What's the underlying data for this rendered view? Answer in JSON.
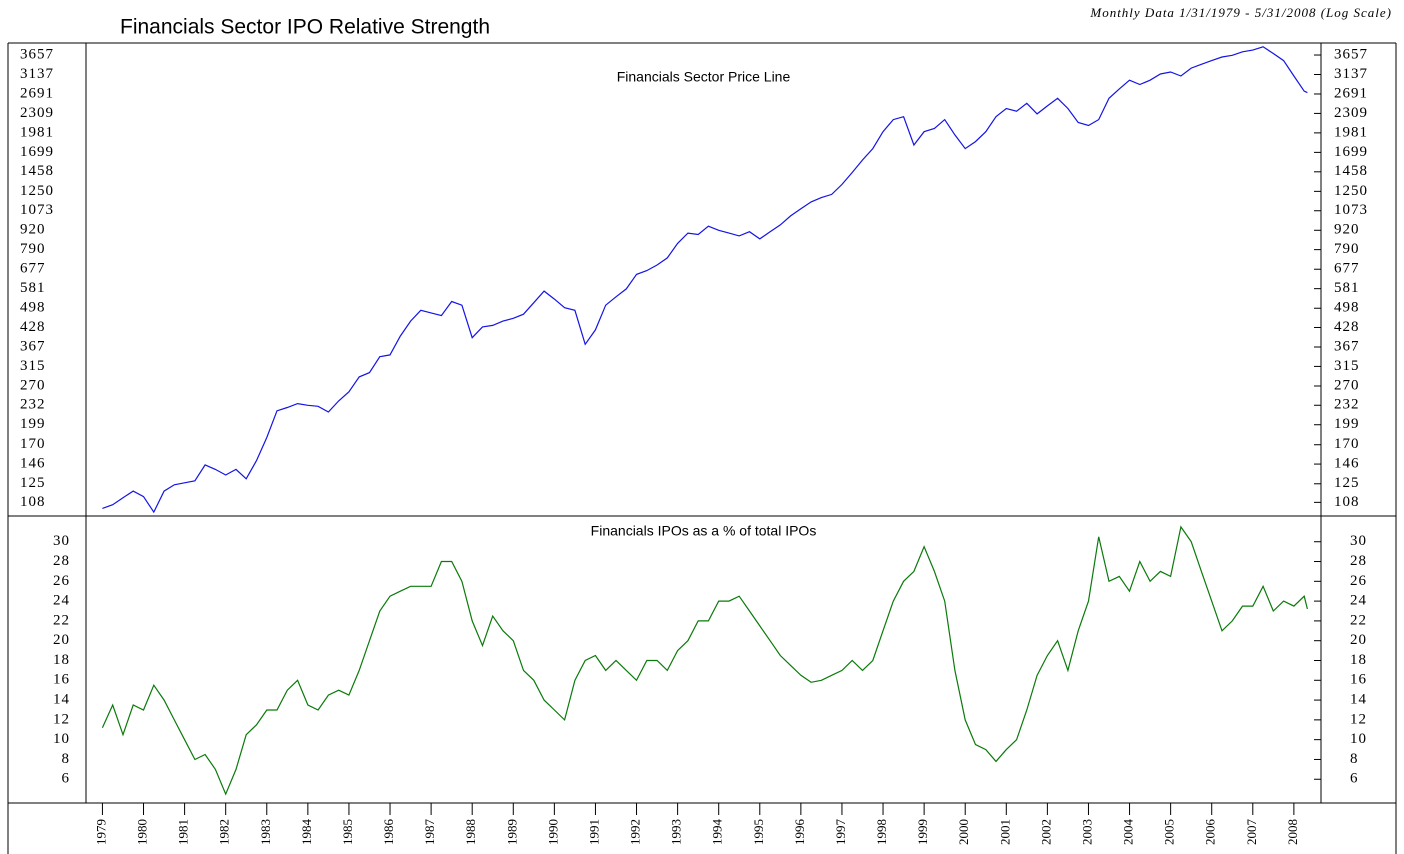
{
  "chart_data": [
    {
      "type": "line",
      "title": "Financials Sector IPO Relative Strength",
      "subtitle": "Monthly Data 1/31/1979 - 5/31/2008 (Log Scale)",
      "log_scale": true,
      "x": [
        1979,
        1979.25,
        1979.5,
        1979.75,
        1980,
        1980.25,
        1980.5,
        1980.75,
        1981,
        1981.25,
        1981.5,
        1981.75,
        1982,
        1982.25,
        1982.5,
        1982.75,
        1983,
        1983.25,
        1983.5,
        1983.75,
        1984,
        1984.25,
        1984.5,
        1984.75,
        1985,
        1985.25,
        1985.5,
        1985.75,
        1986,
        1986.25,
        1986.5,
        1986.75,
        1987,
        1987.25,
        1987.5,
        1987.75,
        1988,
        1988.25,
        1988.5,
        1988.75,
        1989,
        1989.25,
        1989.5,
        1989.75,
        1990,
        1990.25,
        1990.5,
        1990.75,
        1991,
        1991.25,
        1991.5,
        1991.75,
        1992,
        1992.25,
        1992.5,
        1992.75,
        1993,
        1993.25,
        1993.5,
        1993.75,
        1994,
        1994.25,
        1994.5,
        1994.75,
        1995,
        1995.25,
        1995.5,
        1995.75,
        1996,
        1996.25,
        1996.5,
        1996.75,
        1997,
        1997.25,
        1997.5,
        1997.75,
        1998,
        1998.25,
        1998.5,
        1998.75,
        1999,
        1999.25,
        1999.5,
        1999.75,
        2000,
        2000.25,
        2000.5,
        2000.75,
        2001,
        2001.25,
        2001.5,
        2001.75,
        2002,
        2002.25,
        2002.5,
        2002.75,
        2003,
        2003.25,
        2003.5,
        2003.75,
        2004,
        2004.25,
        2004.5,
        2004.75,
        2005,
        2005.25,
        2005.5,
        2005.75,
        2006,
        2006.25,
        2006.5,
        2006.75,
        2007,
        2007.25,
        2007.5,
        2007.75,
        2008,
        2008.25,
        2008.33
      ],
      "series": [
        {
          "name": "Financials Sector Price Line",
          "color": "#1414e6",
          "values": [
            103,
            106,
            112,
            118,
            113,
            100,
            118,
            124,
            126,
            128,
            145,
            140,
            134,
            140,
            130,
            150,
            180,
            222,
            228,
            235,
            232,
            230,
            220,
            240,
            258,
            290,
            300,
            340,
            345,
            400,
            450,
            490,
            480,
            470,
            525,
            510,
            395,
            430,
            435,
            450,
            460,
            475,
            520,
            570,
            535,
            500,
            490,
            375,
            420,
            510,
            545,
            580,
            650,
            670,
            700,
            740,
            830,
            900,
            890,
            950,
            920,
            900,
            880,
            910,
            860,
            910,
            960,
            1030,
            1090,
            1150,
            1190,
            1220,
            1320,
            1450,
            1600,
            1750,
            2000,
            2200,
            2250,
            1800,
            2000,
            2050,
            2200,
            1950,
            1750,
            1850,
            2000,
            2250,
            2400,
            2350,
            2500,
            2300,
            2450,
            2600,
            2400,
            2150,
            2100,
            2200,
            2600,
            2800,
            3000,
            2900,
            3000,
            3150,
            3200,
            3100,
            3300,
            3400,
            3500,
            3600,
            3650,
            3750,
            3800,
            3900,
            3700,
            3500,
            3100,
            2750,
            2720
          ]
        }
      ],
      "xlim": [
        1978.6,
        2008.66
      ],
      "ylim": [
        97,
        4020
      ],
      "yticks": [
        108,
        125,
        146,
        170,
        199,
        232,
        270,
        315,
        367,
        428,
        498,
        581,
        677,
        790,
        920,
        1073,
        1250,
        1458,
        1699,
        1981,
        2309,
        2691,
        3137,
        3657
      ]
    },
    {
      "type": "line",
      "x": [
        1979,
        1979.25,
        1979.5,
        1979.75,
        1980,
        1980.25,
        1980.5,
        1980.75,
        1981,
        1981.25,
        1981.5,
        1981.75,
        1982,
        1982.25,
        1982.5,
        1982.75,
        1983,
        1983.25,
        1983.5,
        1983.75,
        1984,
        1984.25,
        1984.5,
        1984.75,
        1985,
        1985.25,
        1985.5,
        1985.75,
        1986,
        1986.25,
        1986.5,
        1986.75,
        1987,
        1987.25,
        1987.5,
        1987.75,
        1988,
        1988.25,
        1988.5,
        1988.75,
        1989,
        1989.25,
        1989.5,
        1989.75,
        1990,
        1990.25,
        1990.5,
        1990.75,
        1991,
        1991.25,
        1991.5,
        1991.75,
        1992,
        1992.25,
        1992.5,
        1992.75,
        1993,
        1993.25,
        1993.5,
        1993.75,
        1994,
        1994.25,
        1994.5,
        1994.75,
        1995,
        1995.25,
        1995.5,
        1995.75,
        1996,
        1996.25,
        1996.5,
        1996.75,
        1997,
        1997.25,
        1997.5,
        1997.75,
        1998,
        1998.25,
        1998.5,
        1998.75,
        1999,
        1999.25,
        1999.5,
        1999.75,
        2000,
        2000.25,
        2000.5,
        2000.75,
        2001,
        2001.25,
        2001.5,
        2001.75,
        2002,
        2002.25,
        2002.5,
        2002.75,
        2003,
        2003.25,
        2003.5,
        2003.75,
        2004,
        2004.25,
        2004.5,
        2004.75,
        2005,
        2005.25,
        2005.5,
        2005.75,
        2006,
        2006.25,
        2006.5,
        2006.75,
        2007,
        2007.25,
        2007.5,
        2007.75,
        2008,
        2008.25,
        2008.33
      ],
      "series": [
        {
          "name": "Financials IPOs as a % of total IPOs",
          "color": "#0a7a0a",
          "values": [
            11.2,
            13.5,
            10.5,
            13.5,
            13,
            15.5,
            14,
            12,
            10,
            8,
            8.5,
            7,
            4.5,
            7,
            10.5,
            11.5,
            13,
            13,
            15,
            16,
            13.5,
            13,
            14.5,
            15,
            14.5,
            17,
            20,
            23,
            24.5,
            25,
            25.5,
            25.5,
            25.5,
            28,
            28,
            26,
            22,
            19.5,
            22.5,
            21,
            20,
            17,
            16,
            14,
            13,
            12,
            16,
            18,
            18.5,
            17,
            18,
            17,
            16,
            18,
            18,
            17,
            19,
            20,
            22,
            22,
            24,
            24,
            24.5,
            23,
            21.5,
            20,
            18.5,
            17.5,
            16.5,
            15.8,
            16,
            16.5,
            17,
            18,
            17,
            18,
            21,
            24,
            26,
            27,
            29.5,
            27,
            24,
            17,
            12,
            9.5,
            9,
            7.8,
            9,
            10,
            13,
            16.5,
            18.5,
            20,
            17,
            21,
            24,
            30.5,
            26,
            26.5,
            25,
            28,
            26,
            27,
            26.5,
            31.5,
            30,
            27,
            24,
            21,
            22,
            23.5,
            23.5,
            25.5,
            23,
            24,
            23.5,
            24.5,
            23.2
          ]
        }
      ],
      "xlim": [
        1978.6,
        2008.66
      ],
      "xticks": [
        1979,
        1980,
        1981,
        1982,
        1983,
        1984,
        1985,
        1986,
        1987,
        1988,
        1989,
        1990,
        1991,
        1992,
        1993,
        1994,
        1995,
        1996,
        1997,
        1998,
        1999,
        2000,
        2001,
        2002,
        2003,
        2004,
        2005,
        2006,
        2007,
        2008
      ],
      "ylim": [
        3.6,
        32.6
      ],
      "yticks": [
        6,
        8,
        10,
        12,
        14,
        16,
        18,
        20,
        22,
        24,
        26,
        28,
        30
      ]
    }
  ]
}
